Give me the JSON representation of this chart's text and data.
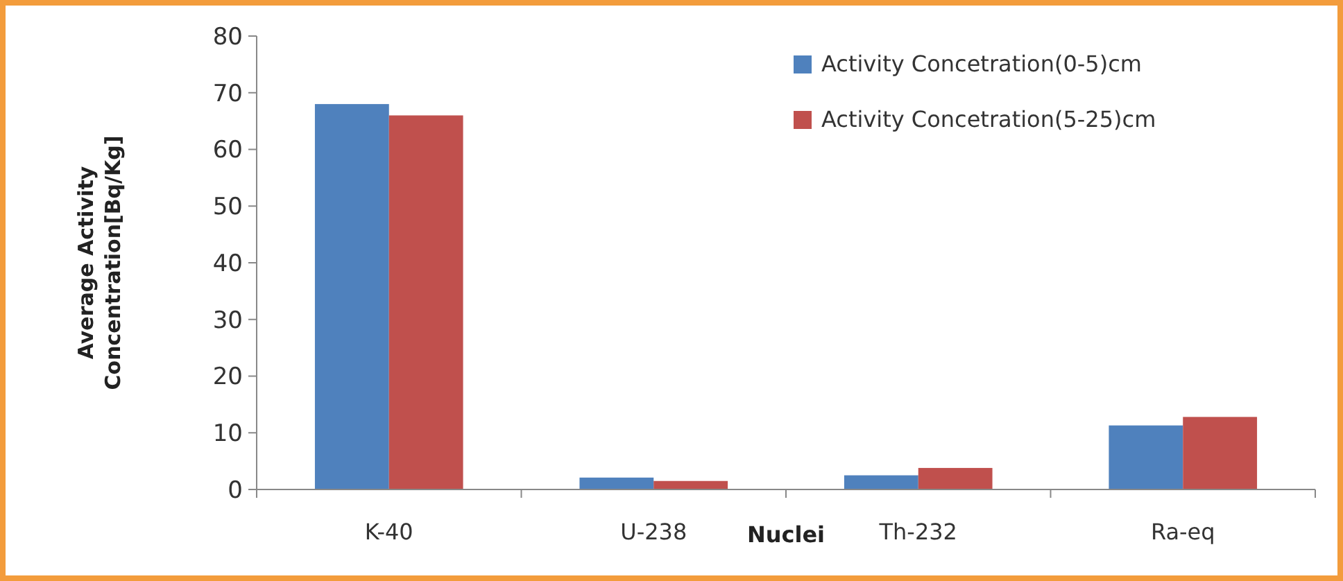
{
  "chart_data": {
    "type": "bar",
    "xlabel": "Nuclei",
    "ylabel": "Average Activity Concentration[Bq/Kg]",
    "categories": [
      "K-40",
      "U-238",
      "Th-232",
      "Ra-eq"
    ],
    "series": [
      {
        "name": "Activity Concetration(0-5)cm",
        "color": "#4f81bd",
        "values": [
          68,
          2.1,
          2.5,
          11.3
        ]
      },
      {
        "name": "Activity Concetration(5-25)cm",
        "color": "#c0504d",
        "values": [
          66,
          1.5,
          3.8,
          12.8
        ]
      }
    ],
    "ylim": [
      0,
      80
    ],
    "yticks": [
      0,
      10,
      20,
      30,
      40,
      50,
      60,
      70,
      80
    ],
    "grid": false,
    "legend": "top right"
  }
}
